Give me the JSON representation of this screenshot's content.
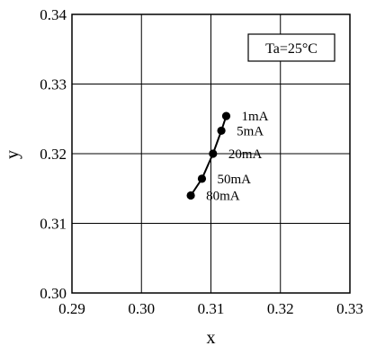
{
  "chart_data": {
    "type": "line",
    "annotation": "Ta=25°C",
    "xlabel": "x",
    "ylabel": "y",
    "xlim": [
      0.29,
      0.33
    ],
    "ylim": [
      0.3,
      0.34
    ],
    "x_ticks": [
      "0.29",
      "0.30",
      "0.31",
      "0.32",
      "0.33"
    ],
    "y_ticks": [
      "0.30",
      "0.31",
      "0.32",
      "0.33",
      "0.34"
    ],
    "grid": true,
    "series": [
      {
        "points": [
          {
            "label": "1mA",
            "x": 0.3122,
            "y": 0.3254
          },
          {
            "label": "5mA",
            "x": 0.3115,
            "y": 0.3233
          },
          {
            "label": "20mA",
            "x": 0.3103,
            "y": 0.32
          },
          {
            "label": "50mA",
            "x": 0.3087,
            "y": 0.3164
          },
          {
            "label": "80mA",
            "x": 0.3071,
            "y": 0.314
          }
        ]
      }
    ]
  }
}
